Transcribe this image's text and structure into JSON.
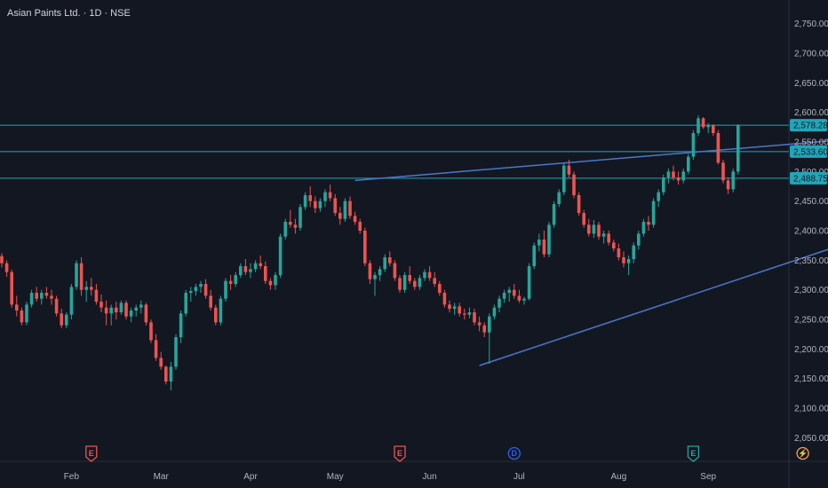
{
  "header": {
    "title": "Asian Paints Ltd. · 1D · NSE"
  },
  "colors": {
    "background": "#131722",
    "up": "#26a69a",
    "down": "#ef5350",
    "trendline": "#4a78c8",
    "hline": "#22a5b8",
    "tag_bg": "#22a5b8",
    "grid_border": "#2a2e39",
    "event_red": "#ef5350",
    "event_blue": "#2962ff",
    "event_green": "#26a69a",
    "event_orange": "#f7a35c"
  },
  "y_axis": {
    "ticks": [
      2050,
      2100,
      2150,
      2200,
      2250,
      2300,
      2350,
      2400,
      2450,
      2500,
      2550,
      2600,
      2650,
      2700,
      2750
    ],
    "tick_labels": [
      "2,050.00",
      "2,100.00",
      "2,150.00",
      "2,200.00",
      "2,250.00",
      "2,300.00",
      "2,350.00",
      "2,400.00",
      "2,450.00",
      "2,500.00",
      "2,550.00",
      "2,600.00",
      "2,650.00",
      "2,700.00",
      "2,750.00"
    ]
  },
  "x_axis": {
    "labels": [
      "Feb",
      "Mar",
      "Apr",
      "May",
      "Jun",
      "Jul",
      "Aug",
      "Sep"
    ]
  },
  "price_tags": [
    {
      "label": "2,578.28",
      "value": 2578.28
    },
    {
      "label": "2,533.60",
      "value": 2533.6
    },
    {
      "label": "2,488.75",
      "value": 2488.75
    }
  ],
  "horizontal_levels": [
    2578.28,
    2533.6,
    2488.75
  ],
  "events": [
    {
      "letter": "E",
      "kind": "earnings",
      "color": "event_red",
      "date_index": 18
    },
    {
      "letter": "E",
      "kind": "earnings",
      "color": "event_red",
      "date_index": 80
    },
    {
      "letter": "D",
      "kind": "dividend",
      "color": "event_blue",
      "date_index": 103
    },
    {
      "letter": "E",
      "kind": "earnings",
      "color": "event_green",
      "date_index": 139
    },
    {
      "letter": "⚡",
      "kind": "split",
      "color": "event_orange",
      "date_index": 161
    }
  ],
  "chart_data": {
    "type": "candlestick",
    "series": [
      {
        "name": "Asian Paints Ltd.",
        "ohlc": [
          [
            2357,
            2362,
            2338,
            2345
          ],
          [
            2345,
            2350,
            2322,
            2330
          ],
          [
            2330,
            2334,
            2270,
            2275
          ],
          [
            2275,
            2290,
            2255,
            2265
          ],
          [
            2265,
            2270,
            2240,
            2245
          ],
          [
            2245,
            2280,
            2240,
            2275
          ],
          [
            2275,
            2300,
            2270,
            2295
          ],
          [
            2295,
            2305,
            2280,
            2285
          ],
          [
            2285,
            2300,
            2275,
            2295
          ],
          [
            2295,
            2305,
            2285,
            2290
          ],
          [
            2290,
            2300,
            2275,
            2285
          ],
          [
            2285,
            2290,
            2255,
            2260
          ],
          [
            2260,
            2268,
            2235,
            2240
          ],
          [
            2240,
            2262,
            2235,
            2258
          ],
          [
            2258,
            2310,
            2250,
            2305
          ],
          [
            2305,
            2350,
            2300,
            2345
          ],
          [
            2345,
            2355,
            2290,
            2300
          ],
          [
            2300,
            2315,
            2280,
            2305
          ],
          [
            2305,
            2320,
            2290,
            2300
          ],
          [
            2300,
            2310,
            2275,
            2280
          ],
          [
            2280,
            2292,
            2262,
            2270
          ],
          [
            2270,
            2282,
            2240,
            2260
          ],
          [
            2260,
            2275,
            2240,
            2270
          ],
          [
            2270,
            2280,
            2250,
            2262
          ],
          [
            2262,
            2282,
            2258,
            2278
          ],
          [
            2278,
            2282,
            2250,
            2255
          ],
          [
            2255,
            2270,
            2245,
            2265
          ],
          [
            2265,
            2275,
            2255,
            2270
          ],
          [
            2270,
            2282,
            2260,
            2275
          ],
          [
            2275,
            2278,
            2240,
            2245
          ],
          [
            2245,
            2250,
            2210,
            2215
          ],
          [
            2215,
            2225,
            2180,
            2185
          ],
          [
            2185,
            2195,
            2165,
            2170
          ],
          [
            2170,
            2172,
            2140,
            2145
          ],
          [
            2145,
            2178,
            2130,
            2170
          ],
          [
            2170,
            2225,
            2165,
            2220
          ],
          [
            2220,
            2265,
            2210,
            2260
          ],
          [
            2260,
            2300,
            2255,
            2295
          ],
          [
            2295,
            2305,
            2280,
            2298
          ],
          [
            2298,
            2310,
            2290,
            2305
          ],
          [
            2305,
            2315,
            2295,
            2310
          ],
          [
            2310,
            2318,
            2285,
            2290
          ],
          [
            2290,
            2300,
            2265,
            2270
          ],
          [
            2270,
            2275,
            2240,
            2245
          ],
          [
            2245,
            2290,
            2240,
            2285
          ],
          [
            2285,
            2320,
            2280,
            2315
          ],
          [
            2315,
            2325,
            2300,
            2310
          ],
          [
            2310,
            2330,
            2305,
            2325
          ],
          [
            2325,
            2345,
            2320,
            2340
          ],
          [
            2340,
            2352,
            2325,
            2330
          ],
          [
            2330,
            2345,
            2320,
            2335
          ],
          [
            2335,
            2350,
            2330,
            2345
          ],
          [
            2345,
            2358,
            2335,
            2340
          ],
          [
            2340,
            2348,
            2310,
            2315
          ],
          [
            2315,
            2320,
            2300,
            2308
          ],
          [
            2308,
            2330,
            2300,
            2325
          ],
          [
            2325,
            2395,
            2320,
            2390
          ],
          [
            2390,
            2420,
            2385,
            2415
          ],
          [
            2415,
            2435,
            2405,
            2410
          ],
          [
            2410,
            2420,
            2395,
            2405
          ],
          [
            2405,
            2445,
            2400,
            2440
          ],
          [
            2440,
            2465,
            2435,
            2460
          ],
          [
            2460,
            2475,
            2440,
            2450
          ],
          [
            2450,
            2458,
            2430,
            2438
          ],
          [
            2438,
            2455,
            2432,
            2450
          ],
          [
            2450,
            2470,
            2440,
            2465
          ],
          [
            2465,
            2478,
            2450,
            2455
          ],
          [
            2455,
            2462,
            2425,
            2430
          ],
          [
            2430,
            2440,
            2410,
            2420
          ],
          [
            2420,
            2455,
            2415,
            2450
          ],
          [
            2450,
            2458,
            2420,
            2425
          ],
          [
            2425,
            2432,
            2410,
            2415
          ],
          [
            2415,
            2420,
            2395,
            2400
          ],
          [
            2400,
            2405,
            2340,
            2345
          ],
          [
            2345,
            2350,
            2310,
            2318
          ],
          [
            2318,
            2330,
            2290,
            2325
          ],
          [
            2325,
            2340,
            2315,
            2335
          ],
          [
            2335,
            2360,
            2330,
            2355
          ],
          [
            2355,
            2365,
            2340,
            2345
          ],
          [
            2345,
            2350,
            2315,
            2320
          ],
          [
            2320,
            2325,
            2295,
            2300
          ],
          [
            2300,
            2330,
            2295,
            2325
          ],
          [
            2325,
            2340,
            2310,
            2315
          ],
          [
            2315,
            2320,
            2300,
            2305
          ],
          [
            2305,
            2325,
            2300,
            2320
          ],
          [
            2320,
            2335,
            2315,
            2330
          ],
          [
            2330,
            2340,
            2315,
            2320
          ],
          [
            2320,
            2330,
            2305,
            2310
          ],
          [
            2310,
            2315,
            2290,
            2295
          ],
          [
            2295,
            2300,
            2270,
            2275
          ],
          [
            2275,
            2282,
            2262,
            2268
          ],
          [
            2268,
            2278,
            2258,
            2272
          ],
          [
            2272,
            2278,
            2255,
            2260
          ],
          [
            2260,
            2268,
            2250,
            2258
          ],
          [
            2258,
            2270,
            2252,
            2262
          ],
          [
            2262,
            2268,
            2240,
            2245
          ],
          [
            2245,
            2255,
            2230,
            2240
          ],
          [
            2240,
            2245,
            2220,
            2228
          ],
          [
            2228,
            2260,
            2175,
            2255
          ],
          [
            2255,
            2275,
            2250,
            2270
          ],
          [
            2270,
            2290,
            2262,
            2285
          ],
          [
            2285,
            2300,
            2278,
            2295
          ],
          [
            2295,
            2305,
            2280,
            2300
          ],
          [
            2300,
            2310,
            2285,
            2290
          ],
          [
            2290,
            2300,
            2278,
            2282
          ],
          [
            2282,
            2288,
            2275,
            2285
          ],
          [
            2285,
            2345,
            2282,
            2340
          ],
          [
            2340,
            2380,
            2335,
            2375
          ],
          [
            2375,
            2395,
            2365,
            2385
          ],
          [
            2385,
            2400,
            2355,
            2360
          ],
          [
            2360,
            2415,
            2355,
            2410
          ],
          [
            2410,
            2450,
            2405,
            2445
          ],
          [
            2445,
            2470,
            2440,
            2465
          ],
          [
            2465,
            2515,
            2460,
            2510
          ],
          [
            2510,
            2520,
            2490,
            2495
          ],
          [
            2495,
            2500,
            2455,
            2460
          ],
          [
            2460,
            2465,
            2425,
            2430
          ],
          [
            2430,
            2435,
            2405,
            2410
          ],
          [
            2410,
            2420,
            2390,
            2395
          ],
          [
            2395,
            2418,
            2388,
            2410
          ],
          [
            2410,
            2415,
            2385,
            2390
          ],
          [
            2390,
            2400,
            2378,
            2395
          ],
          [
            2395,
            2400,
            2375,
            2380
          ],
          [
            2380,
            2385,
            2365,
            2370
          ],
          [
            2370,
            2378,
            2350,
            2355
          ],
          [
            2355,
            2365,
            2338,
            2345
          ],
          [
            2345,
            2358,
            2325,
            2352
          ],
          [
            2352,
            2380,
            2345,
            2375
          ],
          [
            2375,
            2400,
            2368,
            2395
          ],
          [
            2395,
            2420,
            2390,
            2415
          ],
          [
            2415,
            2425,
            2400,
            2410
          ],
          [
            2410,
            2455,
            2405,
            2450
          ],
          [
            2450,
            2470,
            2440,
            2465
          ],
          [
            2465,
            2495,
            2460,
            2490
          ],
          [
            2490,
            2505,
            2480,
            2500
          ],
          [
            2500,
            2510,
            2485,
            2490
          ],
          [
            2490,
            2500,
            2478,
            2485
          ],
          [
            2485,
            2505,
            2480,
            2500
          ],
          [
            2500,
            2530,
            2495,
            2525
          ],
          [
            2525,
            2570,
            2520,
            2565
          ],
          [
            2565,
            2595,
            2560,
            2590
          ],
          [
            2590,
            2592,
            2572,
            2575
          ],
          [
            2575,
            2582,
            2565,
            2578
          ],
          [
            2578,
            2580,
            2560,
            2565
          ],
          [
            2565,
            2570,
            2512,
            2515
          ],
          [
            2515,
            2520,
            2480,
            2485
          ],
          [
            2485,
            2490,
            2462,
            2470
          ],
          [
            2470,
            2505,
            2465,
            2500
          ],
          [
            2500,
            2580,
            2495,
            2578
          ]
        ]
      }
    ],
    "ylim": [
      2010,
      2790
    ],
    "trendlines": [
      {
        "from_index": 71,
        "from_value": 2485,
        "to_index": 221,
        "to_value": 2590
      },
      {
        "from_index": 96,
        "from_value": 2172,
        "to_index": 216,
        "to_value": 2508
      }
    ],
    "grid": false
  }
}
